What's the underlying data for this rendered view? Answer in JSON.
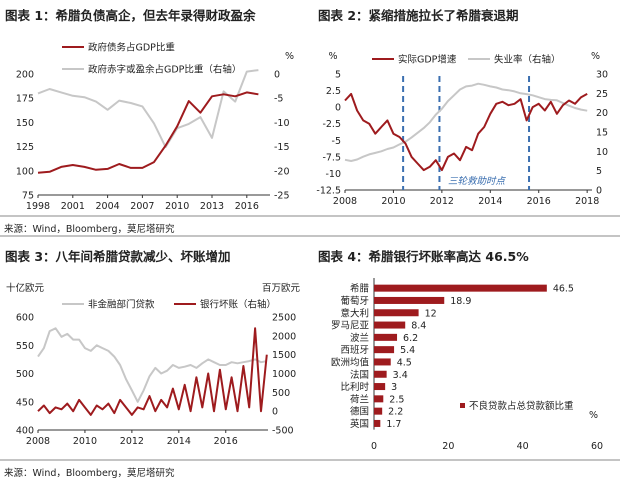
{
  "colors": {
    "red": "#9e1b1e",
    "gray": "#c7c7c7",
    "dash": "#3b6fb0",
    "axis": "#333333",
    "grid": "#e5e5e5",
    "rule": "#8a8a8a"
  },
  "source_top": "来源：Wind，Bloomberg，莫尼塔研究",
  "source_bottom": "来源：Wind，Bloomberg，莫尼塔研究",
  "chart_data": [
    {
      "id": "c1",
      "type": "line",
      "title": "图表 1：希腊负债高企，但去年录得财政盈余",
      "left_unit": "",
      "right_unit": "%",
      "x_ticks": [
        "1998",
        "2001",
        "2004",
        "2007",
        "2010",
        "2013",
        "2016"
      ],
      "xlim": [
        1998,
        2018
      ],
      "ylim_left": [
        75,
        200
      ],
      "ylim_right": [
        -25,
        0
      ],
      "yticks_left": [
        75,
        100,
        125,
        150,
        175,
        200
      ],
      "yticks_right": [
        -25,
        -20,
        -15,
        -10,
        -5,
        0
      ],
      "series": [
        {
          "name": "政府债务占GDP比重",
          "axis": "left",
          "color": "red",
          "x": [
            1998,
            1999,
            2000,
            2001,
            2002,
            2003,
            2004,
            2005,
            2006,
            2007,
            2008,
            2009,
            2010,
            2011,
            2012,
            2013,
            2014,
            2015,
            2016,
            2017
          ],
          "y": [
            98,
            99,
            104,
            106,
            104,
            101,
            102,
            107,
            103,
            103,
            109,
            126,
            146,
            172,
            160,
            177,
            179,
            177,
            181,
            179
          ]
        },
        {
          "name": "政府赤字或盈余占GDP比重（右轴）",
          "axis": "right",
          "color": "gray",
          "x": [
            1998,
            1999,
            2000,
            2001,
            2002,
            2003,
            2004,
            2005,
            2006,
            2007,
            2008,
            2009,
            2010,
            2011,
            2012,
            2013,
            2014,
            2015,
            2016,
            2017
          ],
          "y": [
            -4,
            -3.1,
            -3.8,
            -4.5,
            -4.8,
            -5.7,
            -7.4,
            -5.5,
            -6,
            -6.7,
            -10.2,
            -15.1,
            -11.2,
            -10.3,
            -8.9,
            -13.2,
            -3.6,
            -5.7,
            0.5,
            0.8
          ]
        }
      ]
    },
    {
      "id": "c2",
      "type": "line",
      "title": "图表 2：紧缩措施拉长了希腊衰退期",
      "left_unit": "%",
      "right_unit": "%",
      "x_ticks": [
        "2008",
        "2010",
        "2012",
        "2014",
        "2016",
        "2018"
      ],
      "xlim": [
        2008,
        2018.2
      ],
      "ylim_left": [
        -12.5,
        5
      ],
      "ylim_right": [
        0,
        30
      ],
      "yticks_left": [
        -12.5,
        -10,
        -7.5,
        -5,
        -2.5,
        0,
        2.5,
        5
      ],
      "yticks_left_labels": [
        "-12.5",
        "-10",
        "-7.5",
        "-5",
        "-2.5",
        "0",
        "2.5",
        "5"
      ],
      "yticks_right": [
        0,
        5,
        10,
        15,
        20,
        25,
        30
      ],
      "annotation": "三轮救助时点",
      "annotation_lines": [
        2010.4,
        2011.9,
        2015.6
      ],
      "series": [
        {
          "name": "实际GDP增速",
          "axis": "left",
          "color": "red",
          "x": [
            2008,
            2008.25,
            2008.5,
            2008.75,
            2009,
            2009.25,
            2009.5,
            2009.75,
            2010,
            2010.25,
            2010.5,
            2010.75,
            2011,
            2011.25,
            2011.5,
            2011.75,
            2012,
            2012.25,
            2012.5,
            2012.75,
            2013,
            2013.25,
            2013.5,
            2013.75,
            2014,
            2014.25,
            2014.5,
            2014.75,
            2015,
            2015.25,
            2015.5,
            2015.75,
            2016,
            2016.25,
            2016.5,
            2016.75,
            2017,
            2017.25,
            2017.5,
            2017.75,
            2018
          ],
          "y": [
            1,
            2,
            -0.5,
            -2,
            -2.5,
            -4,
            -3,
            -2,
            -4,
            -4.5,
            -5.5,
            -7.5,
            -8.5,
            -9.5,
            -9,
            -8,
            -9.5,
            -7.5,
            -7,
            -8,
            -6,
            -6.5,
            -4,
            -3,
            -1,
            0.5,
            0.8,
            0.3,
            0.5,
            1.2,
            -2,
            0,
            0.5,
            -0.5,
            0.8,
            -1,
            0.3,
            1,
            0.5,
            1.5,
            2
          ]
        },
        {
          "name": "失业率（右轴）",
          "axis": "right",
          "color": "gray",
          "x": [
            2008,
            2008.25,
            2008.5,
            2008.75,
            2009,
            2009.25,
            2009.5,
            2009.75,
            2010,
            2010.25,
            2010.5,
            2010.75,
            2011,
            2011.25,
            2011.5,
            2011.75,
            2012,
            2012.25,
            2012.5,
            2012.75,
            2013,
            2013.25,
            2013.5,
            2013.75,
            2014,
            2014.25,
            2014.5,
            2014.75,
            2015,
            2015.25,
            2015.5,
            2015.75,
            2016,
            2016.25,
            2016.5,
            2016.75,
            2017,
            2017.25,
            2017.5,
            2017.75,
            2018
          ],
          "y": [
            7.8,
            7.5,
            7.9,
            8.6,
            9.2,
            9.6,
            10,
            10.6,
            11,
            11.8,
            12.5,
            13.6,
            14.8,
            16,
            17.5,
            19.5,
            21,
            23,
            24.5,
            26,
            26.8,
            27,
            27.5,
            27.2,
            26.8,
            26.5,
            26,
            25.8,
            25.5,
            25,
            24.8,
            24.5,
            24,
            23.5,
            23.3,
            23.2,
            22.5,
            21.8,
            21.2,
            20.8,
            20.5
          ]
        }
      ]
    },
    {
      "id": "c3",
      "type": "line",
      "title": "图表 3：八年间希腊贷款减少、坏账增加",
      "left_unit": "十亿欧元",
      "right_unit": "百万欧元",
      "x_ticks": [
        "2008",
        "2010",
        "2012",
        "2014",
        "2016"
      ],
      "xlim": [
        2008,
        2017.8
      ],
      "ylim_left": [
        400,
        600
      ],
      "ylim_right": [
        -500,
        2500
      ],
      "yticks_left": [
        400,
        450,
        500,
        550,
        600
      ],
      "yticks_right": [
        -500,
        0,
        500,
        1000,
        1500,
        2000,
        2500
      ],
      "series": [
        {
          "name": "非金融部门贷款",
          "axis": "left",
          "color": "gray",
          "x": [
            2008,
            2008.25,
            2008.5,
            2008.75,
            2009,
            2009.25,
            2009.5,
            2009.75,
            2010,
            2010.25,
            2010.5,
            2010.75,
            2011,
            2011.25,
            2011.5,
            2011.75,
            2012,
            2012.25,
            2012.5,
            2012.75,
            2013,
            2013.25,
            2013.5,
            2013.75,
            2014,
            2014.25,
            2014.5,
            2014.75,
            2015,
            2015.25,
            2015.5,
            2015.75,
            2016,
            2016.25,
            2016.5,
            2016.75,
            2017,
            2017.25,
            2017.5,
            2017.75
          ],
          "y": [
            530,
            545,
            575,
            580,
            565,
            570,
            560,
            560,
            545,
            540,
            550,
            545,
            540,
            530,
            515,
            490,
            470,
            450,
            470,
            495,
            510,
            500,
            505,
            515,
            510,
            512,
            515,
            510,
            518,
            525,
            520,
            515,
            515,
            520,
            518,
            520,
            522,
            525,
            520,
            522
          ]
        },
        {
          "name": "银行坏账（右轴）",
          "axis": "right",
          "color": "red",
          "x": [
            2008,
            2008.25,
            2008.5,
            2008.75,
            2009,
            2009.25,
            2009.5,
            2009.75,
            2010,
            2010.25,
            2010.5,
            2010.75,
            2011,
            2011.25,
            2011.5,
            2011.75,
            2012,
            2012.25,
            2012.5,
            2012.75,
            2013,
            2013.25,
            2013.5,
            2013.75,
            2014,
            2014.25,
            2014.5,
            2014.75,
            2015,
            2015.25,
            2015.5,
            2015.75,
            2016,
            2016.25,
            2016.5,
            2016.75,
            2017,
            2017.25,
            2017.5,
            2017.75
          ],
          "y": [
            0,
            150,
            -50,
            100,
            50,
            200,
            0,
            300,
            100,
            -100,
            150,
            50,
            200,
            -50,
            300,
            100,
            -100,
            100,
            50,
            400,
            0,
            300,
            100,
            600,
            50,
            700,
            0,
            900,
            100,
            1000,
            0,
            1100,
            50,
            900,
            0,
            1200,
            100,
            2200,
            0,
            1500
          ]
        }
      ]
    },
    {
      "id": "c4",
      "type": "bar",
      "title": "图表 4：希腊银行坏账率高达 46.5%",
      "legend": "不良贷款占总贷款额比重",
      "unit": "%",
      "xlim": [
        0,
        60
      ],
      "x_ticks": [
        0,
        20,
        40,
        60
      ],
      "categories": [
        "希腊",
        "葡萄牙",
        "意大利",
        "罗马尼亚",
        "波兰",
        "西班牙",
        "欧洲均值",
        "法国",
        "比利时",
        "荷兰",
        "德国",
        "英国"
      ],
      "values": [
        46.5,
        18.9,
        12,
        8.4,
        6.2,
        5.4,
        4.5,
        3.4,
        3,
        2.5,
        2.2,
        1.7
      ],
      "value_labels": [
        "46.5",
        "18.9",
        "12",
        "8.4",
        "6.2",
        "5.4",
        "4.5",
        "3.4",
        "3",
        "2.5",
        "2.2",
        "1.7"
      ]
    }
  ]
}
